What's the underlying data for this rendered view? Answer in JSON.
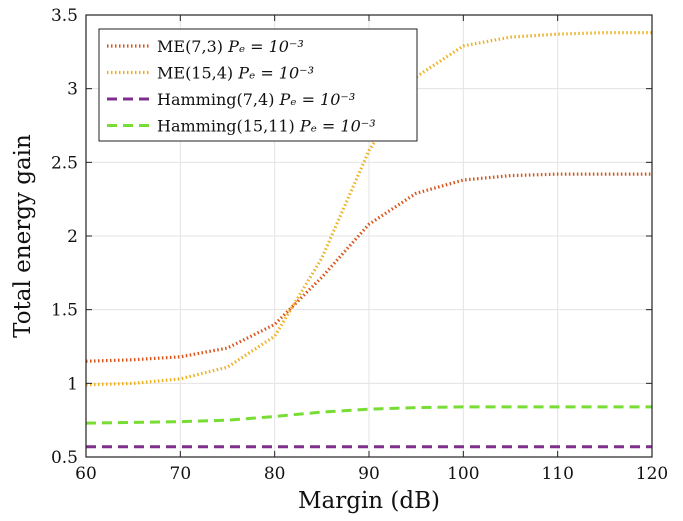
{
  "chart_data": {
    "type": "line",
    "title": "",
    "xlabel": "Margin (dB)",
    "ylabel": "Total energy gain",
    "xlim": [
      60,
      120
    ],
    "ylim": [
      0.5,
      3.5
    ],
    "xticks": [
      60,
      70,
      80,
      90,
      100,
      110,
      120
    ],
    "yticks": [
      0.5,
      1,
      1.5,
      2,
      2.5,
      3,
      3.5
    ],
    "xtick_labels": [
      "60",
      "70",
      "80",
      "90",
      "100",
      "110",
      "120"
    ],
    "ytick_labels": [
      "0.5",
      "1",
      "1.5",
      "2",
      "2.5",
      "3",
      "3.5"
    ],
    "grid": true,
    "legend_position": "top-left",
    "series": [
      {
        "name": "ME(7,3) P_e = 10^-3",
        "legend_label": "ME(7,3)",
        "legend_math": "Pₑ = 10⁻³",
        "color": "#d95319",
        "line_style": "dotted",
        "x": [
          60,
          65,
          70,
          75,
          80,
          85,
          90,
          95,
          100,
          105,
          110,
          115,
          120
        ],
        "y": [
          1.15,
          1.16,
          1.18,
          1.24,
          1.4,
          1.72,
          2.08,
          2.29,
          2.38,
          2.41,
          2.42,
          2.42,
          2.42
        ]
      },
      {
        "name": "ME(15,4) P_e = 10^-3",
        "legend_label": "ME(15,4)",
        "legend_math": "Pₑ = 10⁻³",
        "color": "#edb120",
        "line_style": "dotted",
        "x": [
          60,
          65,
          70,
          75,
          80,
          85,
          90,
          95,
          100,
          105,
          110,
          115,
          120
        ],
        "y": [
          0.99,
          1.0,
          1.03,
          1.11,
          1.32,
          1.85,
          2.58,
          3.08,
          3.29,
          3.35,
          3.37,
          3.38,
          3.38
        ]
      },
      {
        "name": "Hamming(7,4) P_e = 10^-3",
        "legend_label": "Hamming(7,4)",
        "legend_math": "Pₑ = 10⁻³",
        "color": "#7e2f8e",
        "line_style": "dashed",
        "x": [
          60,
          65,
          70,
          75,
          80,
          85,
          90,
          95,
          100,
          105,
          110,
          115,
          120
        ],
        "y": [
          0.57,
          0.57,
          0.57,
          0.57,
          0.57,
          0.57,
          0.57,
          0.57,
          0.57,
          0.57,
          0.57,
          0.57,
          0.57
        ]
      },
      {
        "name": "Hamming(15,11) P_e = 10^-3",
        "legend_label": "Hamming(15,11)",
        "legend_math": "Pₑ = 10⁻³",
        "color": "#77dd33",
        "line_style": "dashed",
        "x": [
          60,
          65,
          70,
          75,
          80,
          85,
          90,
          95,
          100,
          105,
          110,
          115,
          120
        ],
        "y": [
          0.73,
          0.735,
          0.74,
          0.75,
          0.775,
          0.805,
          0.825,
          0.835,
          0.84,
          0.84,
          0.84,
          0.84,
          0.84
        ]
      }
    ]
  }
}
